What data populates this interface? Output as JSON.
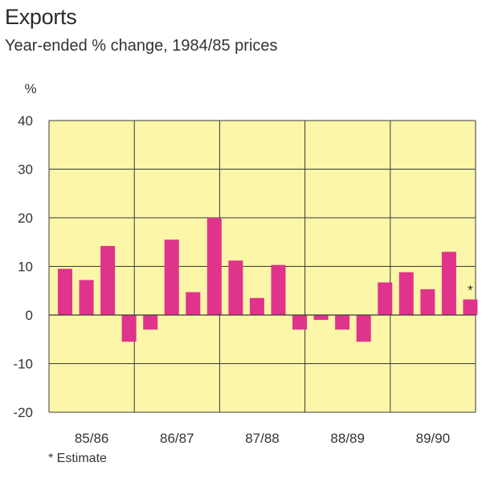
{
  "header": {
    "title": "Exports",
    "subtitle": "Year-ended % change, 1984/85 prices"
  },
  "footnote": "* Estimate",
  "colors": {
    "plot_background": "#fbf6a8",
    "bar": "#e0338c",
    "grid": "#3a3a3a"
  },
  "chart_data": {
    "type": "bar",
    "title": "Exports",
    "subtitle": "Year-ended % change, 1984/85 prices",
    "xlabel": "",
    "ylabel": "%",
    "ylim": [
      -20,
      40
    ],
    "yticks": [
      40,
      30,
      20,
      10,
      0,
      -10,
      -20
    ],
    "grid": true,
    "categories": [
      "85/86",
      "86/87",
      "87/88",
      "88/89",
      "89/90"
    ],
    "series": [
      {
        "values": [
          [
            9.5,
            7.2,
            14.2,
            -5.5
          ],
          [
            -3.0,
            15.5,
            4.7,
            20.0
          ],
          [
            11.2,
            3.5,
            10.3,
            -3.0
          ],
          [
            -1.0,
            -3.0,
            -5.5,
            6.7
          ],
          [
            8.8,
            5.3,
            13.0,
            3.2
          ]
        ]
      }
    ],
    "annotations": [
      {
        "text": "*",
        "category": "89/90",
        "quarter": 4,
        "note": "Estimate"
      }
    ]
  }
}
